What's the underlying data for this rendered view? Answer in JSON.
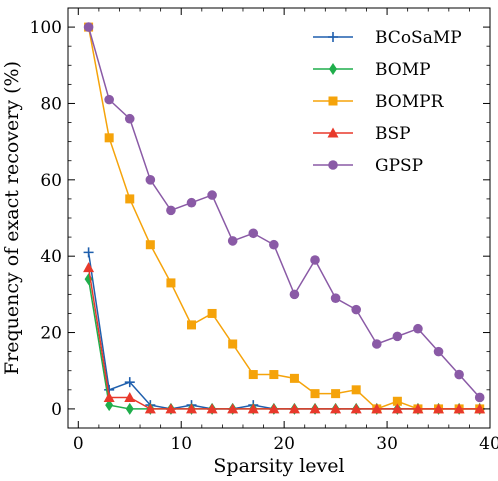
{
  "chart_data": {
    "type": "line",
    "xlabel": "Sparsity level",
    "ylabel": "Frequency of exact recovery (%)",
    "xlim": [
      -1,
      40
    ],
    "ylim": [
      -5,
      105
    ],
    "xticks": [
      0,
      10,
      20,
      30,
      40
    ],
    "yticks": [
      0,
      20,
      40,
      60,
      80,
      100
    ],
    "grid": false,
    "legend_position": "top-right",
    "x": [
      1,
      3,
      5,
      7,
      9,
      11,
      13,
      15,
      17,
      19,
      21,
      23,
      25,
      27,
      29,
      31,
      33,
      35,
      37,
      39
    ],
    "series": [
      {
        "name": "BCoSaMP",
        "color": "#1f5fad",
        "marker": "plus",
        "values": [
          41,
          5,
          7,
          1,
          0,
          1,
          0,
          0,
          1,
          0,
          0,
          0,
          0,
          0,
          0,
          0,
          0,
          0,
          0,
          0
        ]
      },
      {
        "name": "BOMP",
        "color": "#1fae4b",
        "marker": "diamond",
        "values": [
          34,
          1,
          0,
          0,
          0,
          0,
          0,
          0,
          0,
          0,
          0,
          0,
          0,
          0,
          0,
          0,
          0,
          0,
          0,
          0
        ]
      },
      {
        "name": "BOMPR",
        "color": "#f5a30a",
        "marker": "square",
        "values": [
          100,
          71,
          55,
          43,
          33,
          22,
          25,
          17,
          9,
          9,
          8,
          4,
          4,
          5,
          0,
          2,
          0,
          0,
          0,
          0
        ]
      },
      {
        "name": "BSP",
        "color": "#e8392b",
        "marker": "triangle",
        "values": [
          37,
          3,
          3,
          0,
          0,
          0,
          0,
          0,
          0,
          0,
          0,
          0,
          0,
          0,
          0,
          0,
          0,
          0,
          0,
          0
        ]
      },
      {
        "name": "GPSP",
        "color": "#8a5aa6",
        "marker": "circle",
        "values": [
          100,
          81,
          76,
          60,
          52,
          54,
          56,
          44,
          46,
          43,
          30,
          39,
          29,
          26,
          17,
          19,
          21,
          15,
          9,
          3
        ]
      }
    ]
  }
}
